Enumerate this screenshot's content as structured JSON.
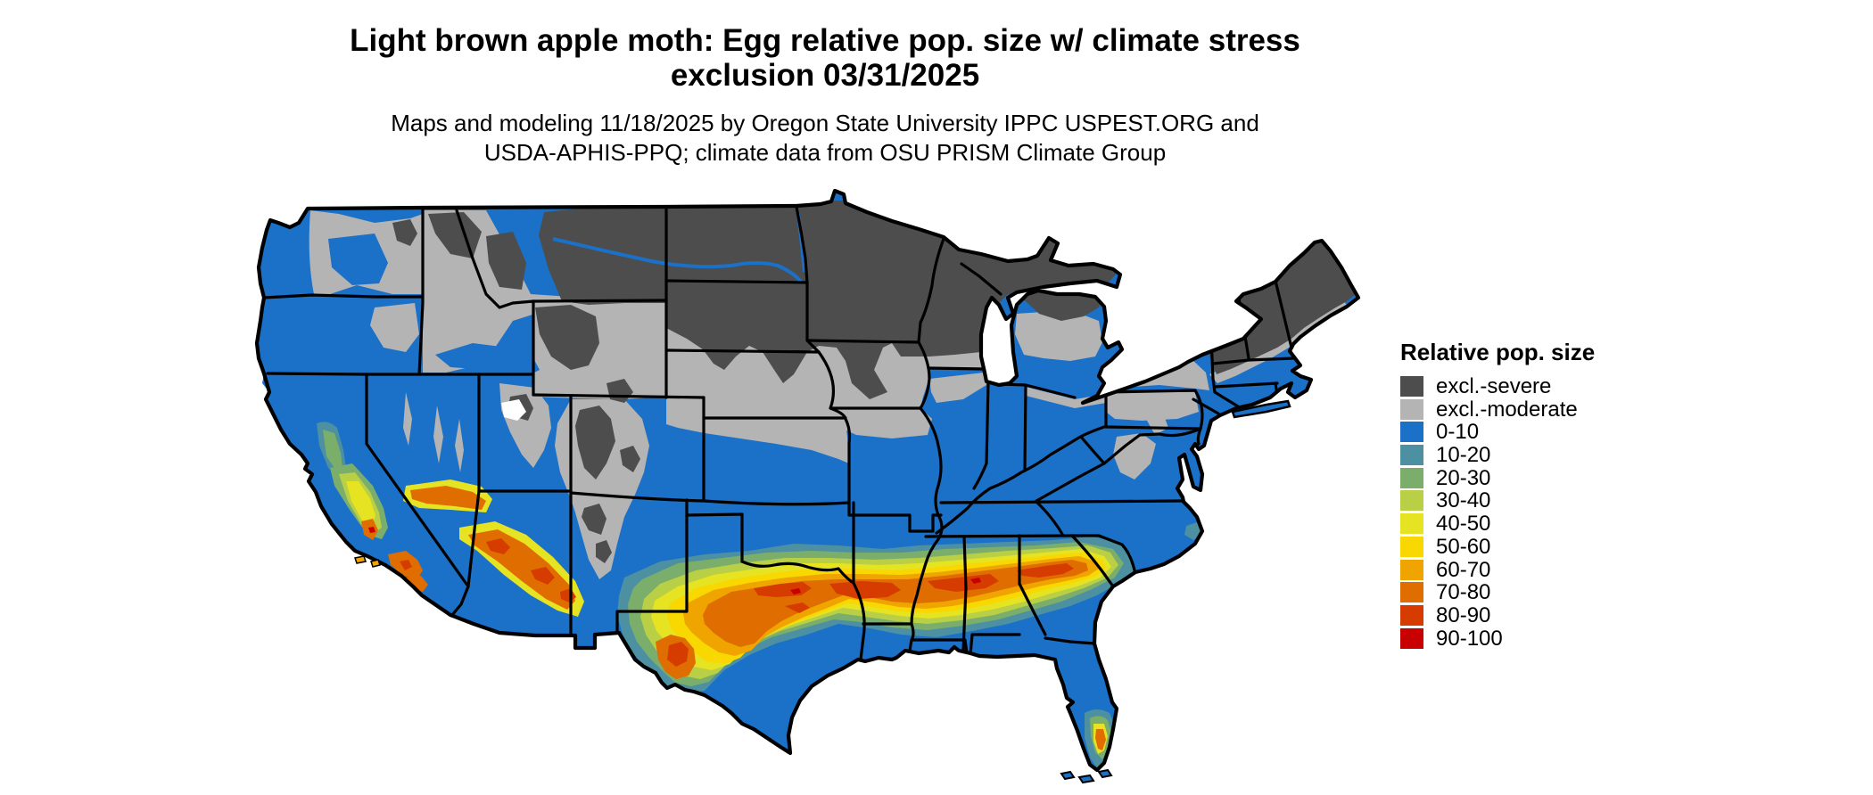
{
  "title": {
    "line1": "Light brown apple moth: Egg relative pop. size w/ climate stress",
    "line2": "exclusion 03/31/2025"
  },
  "subtitle": {
    "line1": "Maps and modeling 11/18/2025 by Oregon State University IPPC USPEST.ORG and",
    "line2": "USDA-APHIS-PPQ; climate data from OSU PRISM Climate Group"
  },
  "legend": {
    "title": "Relative pop. size",
    "items": [
      {
        "key": "severe",
        "label": "excl.-severe",
        "color": "#4D4D4D"
      },
      {
        "key": "moderate",
        "label": "excl.-moderate",
        "color": "#B4B4B4"
      },
      {
        "key": "b0",
        "label": "0-10",
        "color": "#1B70C8"
      },
      {
        "key": "b10",
        "label": "10-20",
        "color": "#4C90A2"
      },
      {
        "key": "b20",
        "label": "20-30",
        "color": "#7BAE6B"
      },
      {
        "key": "b30",
        "label": "30-40",
        "color": "#B9CF45"
      },
      {
        "key": "b40",
        "label": "40-50",
        "color": "#E6E322"
      },
      {
        "key": "b50",
        "label": "50-60",
        "color": "#F8D800"
      },
      {
        "key": "b60",
        "label": "60-70",
        "color": "#EFA400"
      },
      {
        "key": "b70",
        "label": "70-80",
        "color": "#E06D00"
      },
      {
        "key": "b80",
        "label": "80-90",
        "color": "#D63B00"
      },
      {
        "key": "b90",
        "label": "90-100",
        "color": "#C80000"
      }
    ]
  },
  "map": {
    "region": "Contiguous United States",
    "border_color": "#000000",
    "water_color": "#FFFFFF"
  }
}
